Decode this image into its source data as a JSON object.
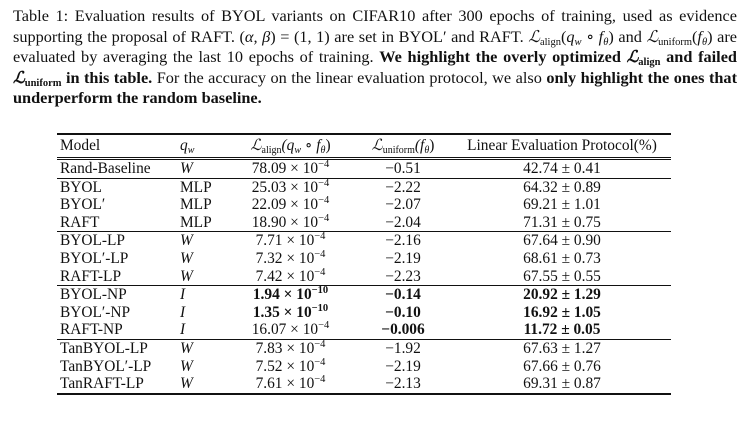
{
  "caption": {
    "s1": "Table 1: Evaluation results of BYOL variants on CIFAR10 after 300 epochs of training, used as evidence supporting the proposal of RAFT. (",
    "s1b": "α, β",
    "s1c": ") = (1, 1) are set in BYOL",
    "s1d": "′ and RAFT. ",
    "loss_align": "ℒ",
    "sub_align": "align",
    "s2": "(",
    "qw": "q",
    "w": "w",
    "circ": " ∘ ",
    "f": "f",
    "theta": "θ",
    "s3": ") and ",
    "sub_uniform": "uniform",
    "s4": ") are evaluated by averaging the last 10 epochs of training. ",
    "bold1": "We highlight the overly optimized ",
    "bold2": " and failed ",
    "bold3": " in this table.",
    "s5": " For the accuracy on the linear evaluation protocol, we also ",
    "bold4": "only highlight the ones that underperform the random baseline."
  },
  "table": {
    "headers": {
      "model": "Model",
      "qw": "q",
      "qw_sub": "w",
      "align": "ℒ",
      "align_sub": "align",
      "align_arg": "(q",
      "align_arg_sub": "w",
      "align_arg2": " ∘ f",
      "align_arg3": "θ",
      "align_close": ")",
      "uniform": "ℒ",
      "uniform_sub": "uniform",
      "uniform_arg": "(f",
      "uniform_arg2": "θ",
      "uniform_close": ")",
      "linear": "Linear Evaluation Protocol(%)"
    },
    "rows": [
      {
        "model": "Rand-Baseline",
        "qw": "W",
        "align_m": "78.09 × 10",
        "align_e": "−4",
        "uniform": "−0.51",
        "linear": "42.74 ± 0.41"
      },
      {
        "model": "BYOL",
        "qw": "MLP",
        "align_m": "25.03 × 10",
        "align_e": "−4",
        "uniform": "−2.22",
        "linear": "64.32 ± 0.89"
      },
      {
        "model": "BYOL′",
        "qw": "MLP",
        "align_m": "22.09 × 10",
        "align_e": "−4",
        "uniform": "−2.07",
        "linear": "69.21 ± 1.01"
      },
      {
        "model": "RAFT",
        "qw": "MLP",
        "align_m": "18.90 × 10",
        "align_e": "−4",
        "uniform": "−2.04",
        "linear": "71.31 ± 0.75"
      },
      {
        "model": "BYOL-LP",
        "qw": "W",
        "align_m": "7.71 × 10",
        "align_e": "−4",
        "uniform": "−2.16",
        "linear": "67.64 ± 0.90"
      },
      {
        "model": "BYOL′-LP",
        "qw": "W",
        "align_m": "7.32 × 10",
        "align_e": "−4",
        "uniform": "−2.19",
        "linear": "68.61 ± 0.73"
      },
      {
        "model": "RAFT-LP",
        "qw": "W",
        "align_m": "7.42 × 10",
        "align_e": "−4",
        "uniform": "−2.23",
        "linear": "67.55 ± 0.55"
      },
      {
        "model": "BYOL-NP",
        "qw": "I",
        "align_m": "1.94 × 10",
        "align_e": "−10",
        "uniform": "−0.14",
        "linear": "20.92 ± 1.29"
      },
      {
        "model": "BYOL′-NP",
        "qw": "I",
        "align_m": "1.35 × 10",
        "align_e": "−10",
        "uniform": "−0.10",
        "linear": "16.92 ± 1.05"
      },
      {
        "model": "RAFT-NP",
        "qw": "I",
        "align_m": "16.07 × 10",
        "align_e": "−4",
        "uniform": "−0.006",
        "linear": "11.72 ± 0.05"
      },
      {
        "model": "TanBYOL-LP",
        "qw": "W",
        "align_m": "7.83 × 10",
        "align_e": "−4",
        "uniform": "−1.92",
        "linear": "67.63 ± 1.27"
      },
      {
        "model": "TanBYOL′-LP",
        "qw": "W",
        "align_m": "7.52 × 10",
        "align_e": "−4",
        "uniform": "−2.19",
        "linear": "67.66 ± 0.76"
      },
      {
        "model": "TanRAFT-LP",
        "qw": "W",
        "align_m": "7.61 × 10",
        "align_e": "−4",
        "uniform": "−2.13",
        "linear": "69.31 ± 0.87"
      }
    ]
  }
}
